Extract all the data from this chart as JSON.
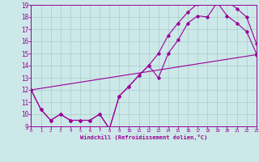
{
  "xlabel": "Windchill (Refroidissement éolien,°C)",
  "bg_color": "#cce8e8",
  "line_color": "#990099",
  "grid_color": "#aacccc",
  "spine_color": "#7700aa",
  "xmin": 0,
  "xmax": 23,
  "ymin": 9,
  "ymax": 19,
  "line1_x": [
    0,
    1,
    2,
    3,
    4,
    5,
    6,
    7,
    8,
    9,
    10,
    11,
    12,
    13,
    14,
    15,
    16,
    17,
    18,
    19,
    20,
    21,
    22,
    23
  ],
  "line1_y": [
    12.0,
    10.4,
    9.5,
    10.0,
    9.5,
    9.5,
    9.5,
    10.0,
    8.8,
    11.5,
    12.3,
    13.2,
    14.0,
    13.0,
    15.0,
    16.1,
    17.5,
    18.1,
    18.0,
    19.2,
    19.3,
    18.7,
    18.0,
    15.8
  ],
  "line2_x": [
    0,
    1,
    2,
    3,
    4,
    5,
    6,
    7,
    8,
    9,
    10,
    11,
    12,
    13,
    14,
    15,
    16,
    17,
    18,
    19,
    20,
    21,
    22,
    23
  ],
  "line2_y": [
    12.0,
    10.4,
    9.5,
    10.0,
    9.5,
    9.5,
    9.5,
    10.0,
    8.8,
    11.5,
    12.3,
    13.2,
    14.0,
    15.0,
    16.5,
    17.5,
    18.4,
    19.1,
    19.3,
    19.2,
    18.1,
    17.5,
    16.8,
    15.0
  ],
  "line3_x": [
    0,
    23
  ],
  "line3_y": [
    12.0,
    14.9
  ]
}
